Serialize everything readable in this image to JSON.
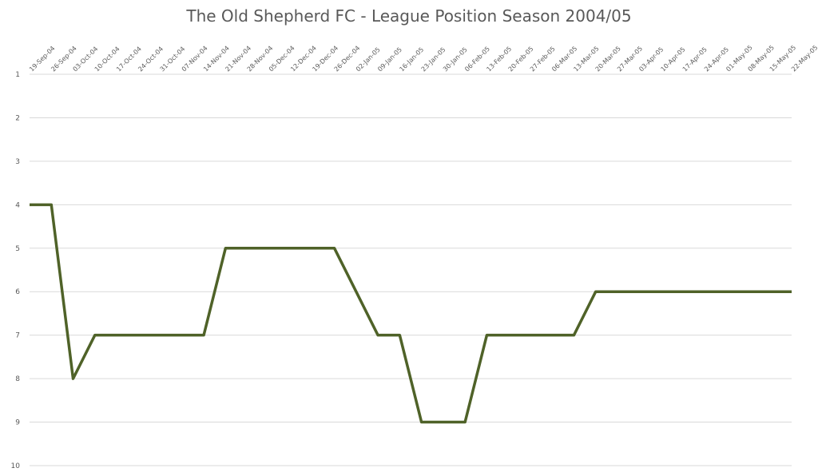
{
  "chart_data": {
    "type": "line",
    "title": "The Old Shepherd FC - League Position Season 2004/05",
    "xlabel": "",
    "ylabel": "",
    "ylim": [
      1,
      10
    ],
    "y_inverted": true,
    "y_ticks": [
      "1",
      "2",
      "3",
      "4",
      "5",
      "6",
      "7",
      "8",
      "9",
      "10"
    ],
    "grid": "horizontal",
    "legend": "none",
    "line_color": "#4f6228",
    "categories": [
      "19-Sep-04",
      "26-Sep-04",
      "03-Oct-04",
      "10-Oct-04",
      "17-Oct-04",
      "24-Oct-04",
      "31-Oct-04",
      "07-Nov-04",
      "14-Nov-04",
      "21-Nov-04",
      "28-Nov-04",
      "05-Dec-04",
      "12-Dec-04",
      "19-Dec-04",
      "26-Dec-04",
      "02-Jan-05",
      "09-Jan-05",
      "16-Jan-05",
      "23-Jan-05",
      "30-Jan-05",
      "06-Feb-05",
      "13-Feb-05",
      "20-Feb-05",
      "27-Feb-05",
      "06-Mar-05",
      "13-Mar-05",
      "20-Mar-05",
      "27-Mar-05",
      "03-Apr-05",
      "10-Apr-05",
      "17-Apr-05",
      "24-Apr-05",
      "01-May-05",
      "08-May-05",
      "15-May-05",
      "22-May-05"
    ],
    "values": [
      4,
      4,
      8,
      7,
      7,
      7,
      7,
      7,
      7,
      5,
      5,
      5,
      5,
      5,
      5,
      6,
      7,
      7,
      9,
      9,
      9,
      7,
      7,
      7,
      7,
      7,
      6,
      6,
      6,
      6,
      6,
      6,
      6,
      6,
      6,
      6
    ]
  }
}
